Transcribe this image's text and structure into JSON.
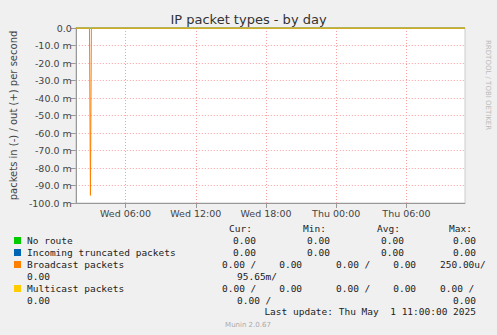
{
  "chart_data": {
    "type": "line",
    "title": "IP packet types - by day",
    "y_label": "packets in (-) / out (+) per second",
    "x": [
      1.75,
      2.917,
      3.0,
      3.083,
      35
    ],
    "xlim": [
      1.75,
      35
    ],
    "xticks": [
      {
        "value": 6,
        "label": "Wed 06:00"
      },
      {
        "value": 12,
        "label": "Wed 12:00"
      },
      {
        "value": 18,
        "label": "Wed 18:00"
      },
      {
        "value": 24,
        "label": "Thu 00:00"
      },
      {
        "value": 30,
        "label": "Thu 06:00"
      }
    ],
    "ylim": [
      -0.1,
      0
    ],
    "yticks": [
      {
        "value": 0,
        "label": "0.0"
      },
      {
        "value": -0.01,
        "label": "-10.0 m"
      },
      {
        "value": -0.02,
        "label": "-20.0 m"
      },
      {
        "value": -0.03,
        "label": "-30.0 m"
      },
      {
        "value": -0.04,
        "label": "-40.0 m"
      },
      {
        "value": -0.05,
        "label": "-50.0 m"
      },
      {
        "value": -0.06,
        "label": "-60.0 m"
      },
      {
        "value": -0.07,
        "label": "-70.0 m"
      },
      {
        "value": -0.08,
        "label": "-80.0 m"
      },
      {
        "value": -0.09,
        "label": "-90.0 m"
      },
      {
        "value": -0.1,
        "label": "-100.0 m"
      }
    ],
    "grid": true,
    "series": [
      {
        "name": "No route",
        "color": "#00cc00",
        "values": [
          0,
          0,
          0,
          0,
          0
        ]
      },
      {
        "name": "Incoming truncated packets",
        "color": "#0066b3",
        "values": [
          0,
          0,
          0,
          0,
          0
        ]
      },
      {
        "name": "Broadcast packets",
        "color": "#ff8000",
        "values": [
          0,
          0,
          -0.09565,
          0,
          0
        ]
      },
      {
        "name": "Multicast packets",
        "color": "#ffcc00",
        "values": [
          0,
          0,
          0,
          0,
          0
        ]
      }
    ]
  },
  "legend_table": {
    "header": [
      "Cur:",
      "Min:",
      "Avg:",
      "Max:"
    ],
    "rows": [
      {
        "values": [
          "0.00",
          "0.00",
          "0.00",
          "0.00"
        ]
      },
      {
        "values": [
          "0.00",
          "0.00",
          "0.00",
          "0.00"
        ]
      },
      {
        "lines": [
          [
            "0.00 /    0.00",
            "0.00 /    0.00",
            "250.00u/"
          ],
          [
            "0.00",
            "95.65m/"
          ]
        ]
      },
      {
        "lines": [
          [
            "0.00 /    0.00",
            "0.00 /    0.00",
            "0.00 /"
          ],
          [
            "0.00",
            "0.00 /",
            "0.00"
          ]
        ]
      }
    ]
  },
  "watermark": "RRDTOOL / TOBI OETIKER",
  "last_update": "Last update: Thu May  1 11:00:00 2025",
  "footer": "Munin 2.0.67"
}
